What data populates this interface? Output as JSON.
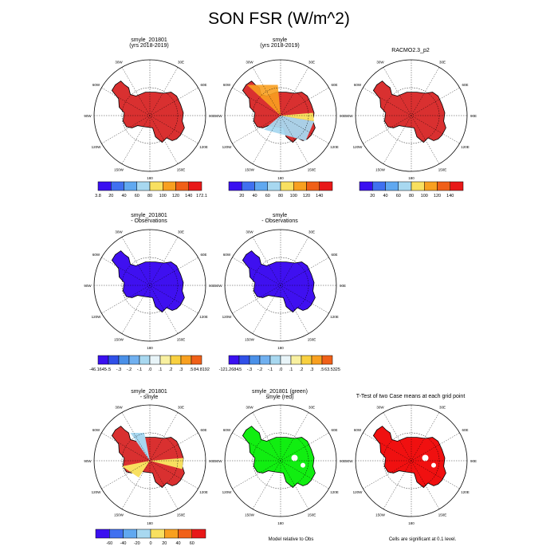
{
  "title": "SON FSR (W/m^2)",
  "colors": {
    "land_fill_top": [
      "#d93030",
      "#d93030",
      "#d93030"
    ],
    "seq_palette": [
      "#3a10f0",
      "#4070f0",
      "#60a8f0",
      "#a8d8f0",
      "#f8e060",
      "#f8a020",
      "#f06018",
      "#e81818",
      "#b01010"
    ],
    "div_palette": [
      "#3a10f0",
      "#3050e8",
      "#4a90e8",
      "#70b0f0",
      "#a8d8f0",
      "#e8f4f8",
      "#f8f0a0",
      "#f8d040",
      "#f8a020",
      "#f06018",
      "#e02018",
      "#b01010"
    ],
    "obs_diff_fill": "#3f10f0",
    "sig_green": "#11ee11",
    "sig_red": "#f01010"
  },
  "panels": [
    {
      "title_line1": "smyle_201801",
      "title_line2": "(yrs 2018-2019)"
    },
    {
      "title_line1": "smyle",
      "title_line2": "(yrs 2018-2019)"
    },
    {
      "title_line1": "RACMO2.3_p2",
      "title_line2": ""
    },
    {
      "title_line1": "smyle_201801",
      "title_line2": "- Observations"
    },
    {
      "title_line1": "smyle",
      "title_line2": "- Observations"
    },
    {
      "title_line1": "smyle_201801",
      "title_line2": "- smyle"
    },
    {
      "title_line1": "smyle_201801 (green)",
      "title_line2": "smyle (red)"
    },
    {
      "title_line1": "T-Test of two Case means at each grid point",
      "title_line2": ""
    }
  ],
  "longitude_labels": [
    "30W",
    "30E",
    "60W",
    "60E",
    "90W",
    "90E",
    "120W",
    "120E",
    "150W",
    "150E",
    "180"
  ],
  "colorbars": {
    "cb1": {
      "labels": [
        "3.8",
        "20",
        "40",
        "60",
        "80",
        "100",
        "120",
        "140",
        "172.1"
      ]
    },
    "cb2": {
      "labels": [
        "20",
        "40",
        "60",
        "80",
        "100",
        "120",
        "140"
      ]
    },
    "cb3": {
      "labels": [
        "20",
        "40",
        "60",
        "80",
        "100",
        "120",
        "140"
      ]
    },
    "cb4": {
      "labels": [
        "-46.1645",
        "-.5",
        "-.3",
        "-.2",
        "-.1",
        ".0",
        ".1",
        ".2",
        ".3",
        ".5",
        "84.8192"
      ]
    },
    "cb5": {
      "labels": [
        "-121.2684",
        "-.5",
        "-.3",
        "-.2",
        "-.1",
        ".0",
        ".1",
        ".2",
        ".3",
        ".5",
        "63.5325"
      ]
    },
    "cb6": {
      "labels": [
        "-60",
        "-40",
        "-20",
        "0",
        "20",
        "40",
        "60"
      ]
    }
  },
  "notes": {
    "model_relative": "Model relative to Obs",
    "significance": "Cells are significant at 0.1 level."
  },
  "chart_data": {
    "type": "heatmap",
    "title": "SON FSR (W/m^2)",
    "projection": "south polar stereographic",
    "region": "Antarctica",
    "panels": [
      {
        "name": "smyle_201801 (yrs 2018-2019)",
        "range": [
          3.8,
          172.1
        ]
      },
      {
        "name": "smyle (yrs 2018-2019)",
        "range": [
          20,
          140
        ]
      },
      {
        "name": "RACMO2.3_p2",
        "range": [
          20,
          140
        ]
      },
      {
        "name": "smyle_201801 - Observations",
        "range": [
          -46.1645,
          84.8192
        ]
      },
      {
        "name": "smyle - Observations",
        "range": [
          -121.2684,
          63.5325
        ]
      },
      {
        "name": "smyle_201801 - smyle",
        "range": [
          -60,
          60
        ]
      },
      {
        "name": "smyle_201801 (green) smyle (red)"
      },
      {
        "name": "T-Test of two Case means at each grid point"
      }
    ]
  }
}
